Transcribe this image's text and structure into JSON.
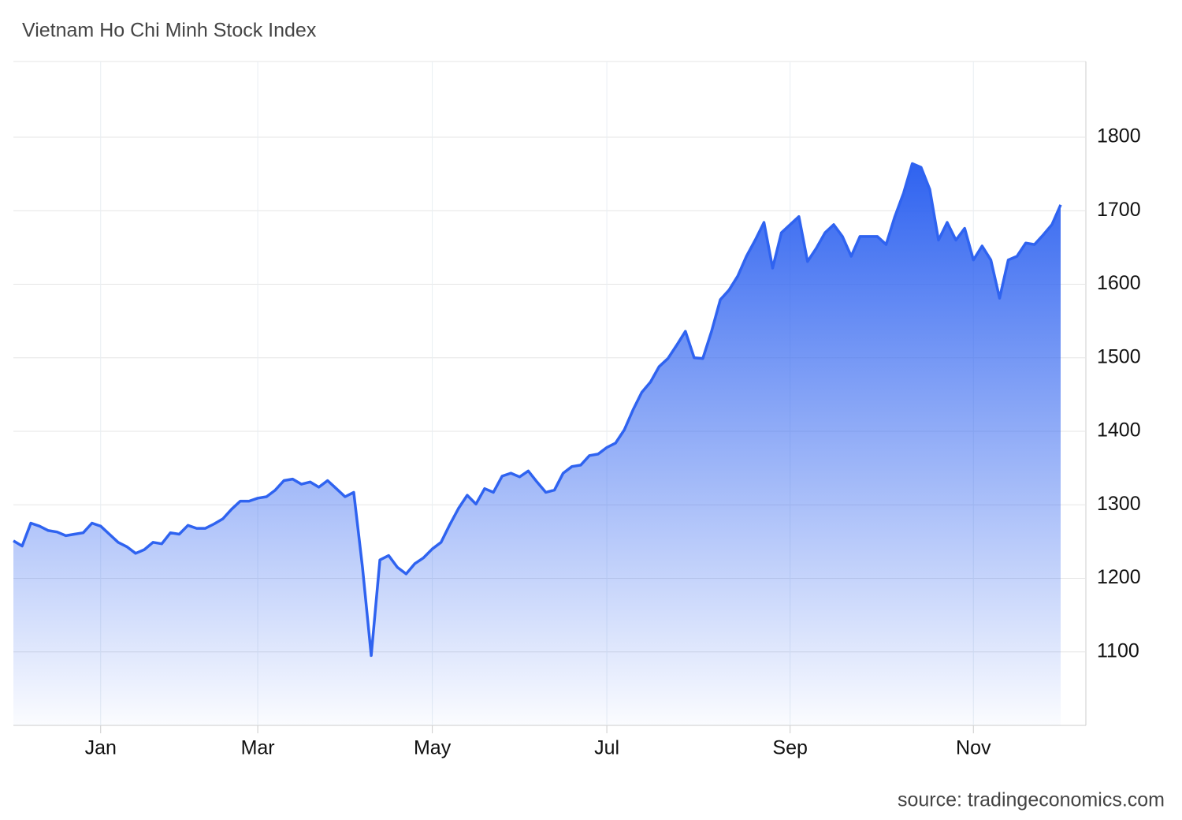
{
  "chart_data": {
    "type": "area",
    "title": "Vietnam Ho Chi Minh Stock Index",
    "source": "source: tradingeconomics.com",
    "categories": [
      null,
      null,
      null,
      null,
      null,
      null,
      null,
      null,
      null,
      null,
      "Jan",
      null,
      null,
      null,
      null,
      null,
      null,
      null,
      null,
      null,
      null,
      null,
      null,
      null,
      null,
      null,
      null,
      null,
      "Mar",
      null,
      null,
      null,
      null,
      null,
      null,
      null,
      null,
      null,
      null,
      null,
      null,
      null,
      null,
      null,
      null,
      null,
      null,
      null,
      "May",
      null,
      null,
      null,
      null,
      null,
      null,
      null,
      null,
      null,
      null,
      null,
      null,
      null,
      null,
      null,
      null,
      null,
      null,
      null,
      "Jul",
      null,
      null,
      null,
      null,
      null,
      null,
      null,
      null,
      null,
      null,
      null,
      null,
      null,
      null,
      null,
      null,
      null,
      null,
      null,
      null,
      "Sep",
      null,
      null,
      null,
      null,
      null,
      null,
      null,
      null,
      null,
      null,
      null,
      null,
      null,
      null,
      null,
      null,
      null,
      null,
      null,
      null,
      "Nov",
      null,
      null,
      null,
      null,
      null,
      null,
      null,
      null,
      null,
      null
    ],
    "values": [
      1251,
      1244,
      1275,
      1271,
      1265,
      1263,
      1258,
      1260,
      1262,
      1275,
      1271,
      1260,
      1249,
      1243,
      1234,
      1239,
      1249,
      1247,
      1262,
      1260,
      1272,
      1268,
      1268,
      1274,
      1281,
      1294,
      1305,
      1305,
      1309,
      1311,
      1320,
      1333,
      1335,
      1328,
      1331,
      1324,
      1333,
      1322,
      1311,
      1317,
      1215,
      1095,
      1225,
      1231,
      1215,
      1206,
      1220,
      1228,
      1240,
      1249,
      1273,
      1295,
      1313,
      1301,
      1322,
      1317,
      1339,
      1343,
      1338,
      1346,
      1331,
      1317,
      1320,
      1343,
      1352,
      1354,
      1367,
      1369,
      1378,
      1384,
      1402,
      1429,
      1453,
      1467,
      1488,
      1499,
      1517,
      1536,
      1500,
      1499,
      1536,
      1579,
      1592,
      1611,
      1638,
      1660,
      1684,
      1622,
      1670,
      1681,
      1692,
      1631,
      1649,
      1670,
      1681,
      1665,
      1638,
      1665,
      1665,
      1665,
      1654,
      1692,
      1724,
      1764,
      1759,
      1729,
      1660,
      1684,
      1660,
      1676,
      1633,
      1652,
      1633,
      1581,
      1633,
      1638,
      1656,
      1654,
      1667,
      1681,
      1708
    ],
    "color": "#2f63f0",
    "ylim": [
      1000,
      1900
    ],
    "yticks": [
      1100,
      1200,
      1300,
      1400,
      1500,
      1600,
      1700,
      1800
    ],
    "grid": true
  }
}
